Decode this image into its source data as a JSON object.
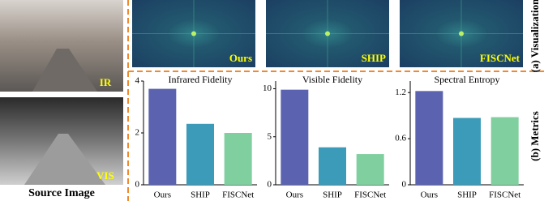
{
  "figure": {
    "source_label": "Source Image",
    "ir_label": "IR",
    "vis_label": "VIS",
    "visualization_label": "(a) Visualization",
    "metrics_label": "(b) Metrics",
    "spectrum_labels": [
      "Ours",
      "SHIP",
      "FISCNet"
    ]
  },
  "chart_data": [
    {
      "type": "bar",
      "title": "Infrared Fidelity",
      "categories": [
        "Ours",
        "SHIP",
        "FISCNet"
      ],
      "values": [
        3.7,
        2.35,
        2.0
      ],
      "colors": [
        "#5b63b0",
        "#3b9bb9",
        "#7fcf9f"
      ],
      "ylim": [
        0,
        4
      ],
      "yticks": [
        0,
        2,
        4
      ]
    },
    {
      "type": "bar",
      "title": "Visible Fidelity",
      "categories": [
        "Ours",
        "SHIP",
        "FISCNet"
      ],
      "values": [
        9.9,
        3.9,
        3.2
      ],
      "colors": [
        "#5b63b0",
        "#3b9bb9",
        "#7fcf9f"
      ],
      "ylim": [
        0,
        10.8
      ],
      "yticks": [
        0,
        5,
        10
      ]
    },
    {
      "type": "bar",
      "title": "Spectral Entropy",
      "categories": [
        "Ours",
        "SHIP",
        "FISCNet"
      ],
      "values": [
        1.22,
        0.87,
        0.88
      ],
      "colors": [
        "#5b63b0",
        "#3b9bb9",
        "#7fcf9f"
      ],
      "ylim": [
        0,
        1.35
      ],
      "yticks": [
        0,
        0.6,
        1.2
      ]
    }
  ]
}
